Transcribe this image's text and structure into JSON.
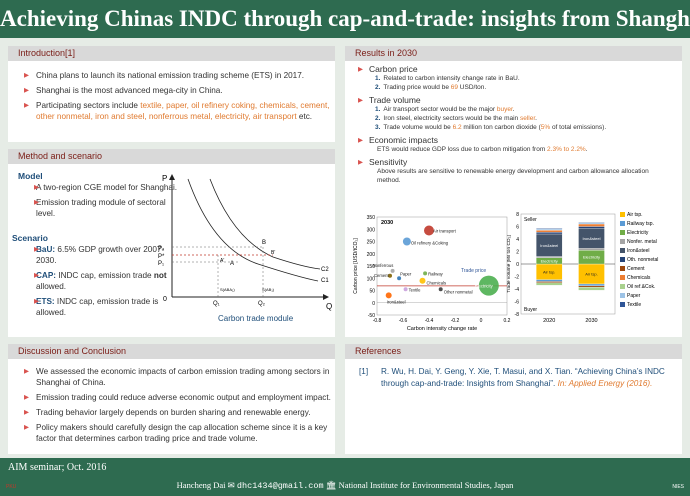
{
  "title": "Achieving Chinas INDC through cap-and-trade: insights from Shanghai",
  "intro": {
    "heading": "Introduction[1]",
    "b1": "China plans to launch its national emission trading scheme (ETS) in 2017.",
    "b2": "Shanghai is the most advanced mega-city in China.",
    "b3_pre": "Participating sectors include ",
    "b3_hl": "textile, paper, oil refinery  coking, chemicals, cement, other nonmetal, iron and steel, nonferrous metal, electricity, air transport",
    "b3_post": " etc."
  },
  "method": {
    "heading": "Method and scenario",
    "model_label": "Model",
    "m1": "A two-region CGE model for Shanghai.",
    "m2": "Emission trading module of sectoral level.",
    "scenario_label": "Scenario",
    "s1_k": "BaU:",
    "s1_v": " 6.5% GDP growth over 2007-2030.",
    "s2_k": "CAP:",
    "s2_v1": " INDC cap, emission trade ",
    "s2_not": "not",
    "s2_v2": " allowed.",
    "s3_k": "ETS:",
    "s3_v": " INDC cap, emission trade is allowed.",
    "diagram": {
      "caption": "Carbon trade module",
      "p": "P",
      "q": "Q",
      "o": "0",
      "p2": "P₂",
      "pstar": "P*",
      "p1": "P₁",
      "q1": "Q₁",
      "q2": "Q₂",
      "a": "A",
      "b": "B",
      "bprime": "B'",
      "aprime": "A'",
      "c1": "C1",
      "c2": "C2",
      "sba": "S(ABA₁)",
      "sab": "S(AB₁)"
    }
  },
  "results": {
    "heading": "Results in 2030",
    "carbon_price": "Carbon price",
    "cp1": "Related to carbon intensity change rate in BaU.",
    "cp2_pre": "Trading price would be ",
    "cp2_hl": "69",
    "cp2_post": " USD/ton.",
    "trade_volume": "Trade volume",
    "tv1_pre": "Air transport sector would be the major ",
    "tv1_hl": "buyer",
    "tv1_post": ".",
    "tv2_pre": "Iron  steel, electricity sectors would be the main ",
    "tv2_hl": "seller",
    "tv2_post": ".",
    "tv3_pre": "Trade volume would be ",
    "tv3_hl": "6.2",
    "tv3_mid": " million ton carbon dioxide (",
    "tv3_hl2": "5%",
    "tv3_post": " of total emissions).",
    "econ": "Economic impacts",
    "econ_pre": "ETS would reduce GDP loss due to carbon mitigation from ",
    "econ_hl": "2.3% to 2.2%",
    "econ_post": ".",
    "sens": "Sensitivity",
    "sens_txt": "Above results are sensitive to renewable energy development and carbon allowance allocation method."
  },
  "chart_data": [
    {
      "type": "scatter",
      "title": "2030",
      "xlabel": "Carbon intensity change rate",
      "ylabel": "Carbon price [USD/tCO₂]",
      "xlim": [
        -0.8,
        0.2
      ],
      "ylim": [
        -50,
        350
      ],
      "xticks": [
        "-0.8",
        "-0.6",
        "-0.4",
        "-0.2",
        "0",
        "0.2"
      ],
      "yticks": [
        "350",
        "300",
        "250",
        "200",
        "150",
        "100",
        "50",
        "0",
        "-50"
      ],
      "trade_price_label": "Trade price",
      "trade_price": 69,
      "points": [
        {
          "label": "Air transport",
          "x": -0.4,
          "y": 295,
          "color": "#c0392b",
          "size": 5
        },
        {
          "label": "Oil refinery &Coking",
          "x": -0.57,
          "y": 250,
          "color": "#5b9bd5",
          "size": 4
        },
        {
          "label": "Nonferrous",
          "x": -0.68,
          "y": 130,
          "color": "#a5a5a5",
          "size": 2
        },
        {
          "label": "Cement",
          "x": -0.7,
          "y": 110,
          "color": "#7f6000",
          "size": 2
        },
        {
          "label": "Paper",
          "x": -0.63,
          "y": 100,
          "color": "#2e75b6",
          "size": 2
        },
        {
          "label": "Railway",
          "x": -0.43,
          "y": 120,
          "color": "#70ad47",
          "size": 2
        },
        {
          "label": "Chemicals",
          "x": -0.45,
          "y": 90,
          "color": "#ffc000",
          "size": 3
        },
        {
          "label": "Textile",
          "x": -0.58,
          "y": 55,
          "color": "#c9a0dc",
          "size": 2
        },
        {
          "label": "Other nonmetal",
          "x": -0.31,
          "y": 55,
          "color": "#3a3a3a",
          "size": 2
        },
        {
          "label": "Iron&steel",
          "x": -0.71,
          "y": 30,
          "color": "#ff6600",
          "size": 3
        },
        {
          "label": "Electricity",
          "x": 0.06,
          "y": 70,
          "color": "#4caf50",
          "size": 10
        }
      ]
    },
    {
      "type": "bar",
      "ylabel": "Trade volume [Mil ton CO₂]",
      "categories": [
        "2020",
        "2030"
      ],
      "ylim": [
        -8,
        8
      ],
      "yticks": [
        "8",
        "6",
        "4",
        "2",
        "0",
        "-2",
        "-4",
        "-6",
        "-8"
      ],
      "seller_label": "Seller",
      "buyer_label": "Buyer",
      "series": [
        {
          "name": "Air tsp.",
          "color": "#ffc000",
          "values": [
            -2.5,
            -3.2
          ]
        },
        {
          "name": "Railway tsp.",
          "color": "#5b9bd5",
          "values": [
            -0.3,
            -0.3
          ]
        },
        {
          "name": "Electricity",
          "color": "#70ad47",
          "values": [
            1.0,
            2.2
          ]
        },
        {
          "name": "Nonfer. metal",
          "color": "#a5a5a5",
          "values": [
            0.2,
            0.3
          ]
        },
        {
          "name": "Iron&steel",
          "color": "#44546a",
          "values": [
            3.6,
            3.2
          ]
        },
        {
          "name": "Oth. nonmetal",
          "color": "#264478",
          "values": [
            0.3,
            0.3
          ]
        },
        {
          "name": "Cement",
          "color": "#9e480e",
          "values": [
            -0.2,
            -0.2
          ]
        },
        {
          "name": "Chemicals",
          "color": "#ed7d31",
          "values": [
            0.3,
            0.4
          ]
        },
        {
          "name": "Oil ref.&Cok.",
          "color": "#a9d18e",
          "values": [
            -0.4,
            -0.5
          ]
        },
        {
          "name": "Paper",
          "color": "#9dc3e6",
          "values": [
            0.2,
            0.2
          ]
        },
        {
          "name": "Textile",
          "color": "#2f5597",
          "values": [
            0.1,
            0.1
          ]
        }
      ]
    }
  ],
  "discussion": {
    "heading": "Discussion and Conclusion",
    "d1": "We assessed the economic impacts of carbon emission trading among sectors in Shanghai of China.",
    "d2": "Emission trading could reduce adverse economic output and employment impact.",
    "d3": "Trading behavior largely depends on burden sharing and renewable energy.",
    "d4": "Policy makers should carefully design the cap allocation scheme since it is a key factor that determines carbon trading price and trade volume."
  },
  "references": {
    "heading": "References",
    "num": "[1]",
    "text": "R. Wu, H. Dai, Y. Geng, Y. Xie, T. Masui, and X. Tian. “Achieving China’s INDC through cap-and-trade: Insights from Shanghai”.",
    "journal": "In: Applied Energy (2016)."
  },
  "footer": {
    "seminar": "AIM seminar; Oct. 2016",
    "author": "Hancheng Dai",
    "email": "dhc1434@gmail.com",
    "institute": "National Institute for Environmental Studies, Japan",
    "logo_left": "PKU",
    "logo_right": "NIES"
  },
  "colors": {
    "header": "#2e6b50",
    "accent": "#7a1c16",
    "highlight": "#e07a2f"
  }
}
